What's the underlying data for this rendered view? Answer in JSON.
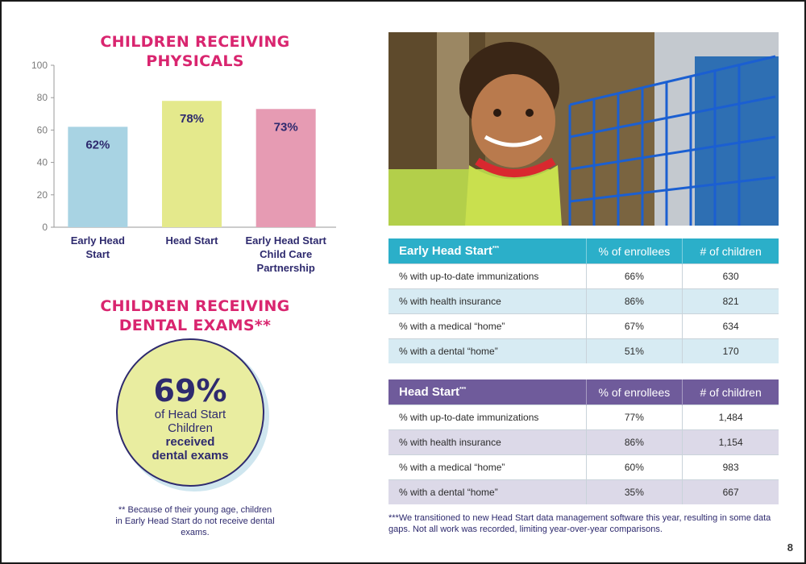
{
  "physicals": {
    "title": "CHILDREN RECEIVING PHYSICALS"
  },
  "chart_data": {
    "type": "bar",
    "title": "CHILDREN RECEIVING PHYSICALS",
    "categories": [
      "Early Head Start",
      "Head Start",
      "Early Head Start Child Care Partnership"
    ],
    "category_lines": [
      [
        "Early Head",
        "Start"
      ],
      [
        "Head Start"
      ],
      [
        "Early Head Start",
        "Child Care",
        "Partnership"
      ]
    ],
    "values": [
      62,
      78,
      73
    ],
    "data_labels": [
      "62%",
      "78%",
      "73%"
    ],
    "colors": [
      "#a8d3e3",
      "#e4e98c",
      "#e69bb3"
    ],
    "ylim": [
      0,
      100
    ],
    "yticks": [
      0,
      20,
      40,
      60,
      80,
      100
    ],
    "grid": false
  },
  "dental": {
    "title": "CHILDREN RECEIVING DENTAL EXAMS**",
    "percent": "69%",
    "line1": "of Head Start",
    "line2": "Children",
    "bold1": "received",
    "bold2": "dental exams",
    "note": "** Because of their young age, children in Early Head Start do not receive dental exams."
  },
  "tables": {
    "ehs": {
      "title": "Early Head Start",
      "title_mark": "***",
      "col1": "% of enrollees",
      "col2": "# of children",
      "rows": [
        {
          "label": "% with up-to-date immunizations",
          "pct": "66%",
          "count": "630"
        },
        {
          "label": "% with health insurance",
          "pct": "86%",
          "count": "821"
        },
        {
          "label": "% with a medical “home”",
          "pct": "67%",
          "count": "634"
        },
        {
          "label": "% with a dental “home”",
          "pct": "51%",
          "count": "170"
        }
      ]
    },
    "hs": {
      "title": "Head Start",
      "title_mark": "***",
      "col1": "% of enrollees",
      "col2": "# of children",
      "rows": [
        {
          "label": "% with up-to-date immunizations",
          "pct": "77%",
          "count": "1,484"
        },
        {
          "label": "% with health insurance",
          "pct": "86%",
          "count": "1,154"
        },
        {
          "label": "% with a medical “home”",
          "pct": "60%",
          "count": "983"
        },
        {
          "label": "% with a dental “home”",
          "pct": "35%",
          "count": "667"
        }
      ]
    }
  },
  "footnote": "***We transitioned to new Head Start data management software this year, resulting in some data gaps. Not all work was recorded, limiting year-over-year comparisons.",
  "page_number": "8",
  "colors": {
    "title_pink": "#d9256f",
    "navy": "#2e2a6e",
    "ehs_header": "#2bafc9",
    "hs_header": "#6f5b9b"
  }
}
